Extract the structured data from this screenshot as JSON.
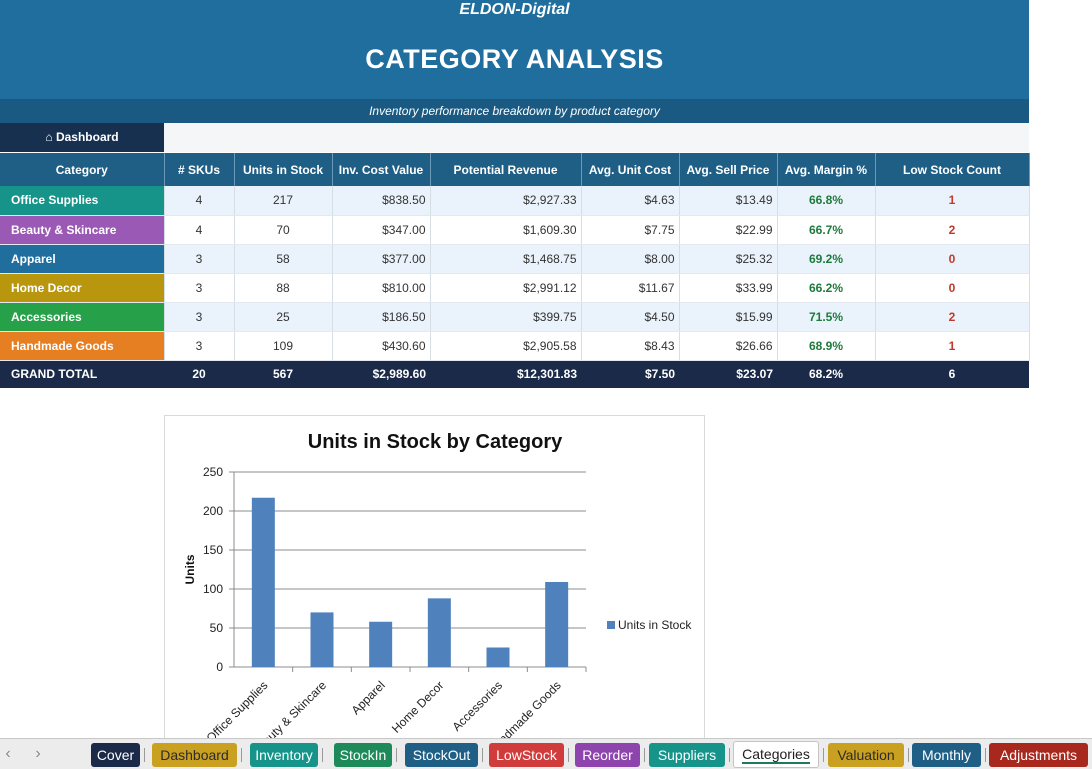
{
  "header": {
    "brand": "ELDON-Digital",
    "title": "CATEGORY ANALYSIS",
    "subtitle": "Inventory performance breakdown by product category",
    "dashboard_link": "⌂ Dashboard"
  },
  "table": {
    "columns": [
      "Category",
      "# SKUs",
      "Units in Stock",
      "Inv. Cost Value",
      "Potential Revenue",
      "Avg. Unit Cost",
      "Avg. Sell Price",
      "Avg. Margin %",
      "Low Stock Count"
    ],
    "rows": [
      {
        "category": "Office Supplies",
        "color": "#17948a",
        "skus": "4",
        "units": "217",
        "cost_value": "$838.50",
        "revenue": "$2,927.33",
        "avg_cost": "$4.63",
        "avg_price": "$13.49",
        "margin": "66.8%",
        "low": "1"
      },
      {
        "category": "Beauty & Skincare",
        "color": "#9b59b6",
        "skus": "4",
        "units": "70",
        "cost_value": "$347.00",
        "revenue": "$1,609.30",
        "avg_cost": "$7.75",
        "avg_price": "$22.99",
        "margin": "66.7%",
        "low": "2"
      },
      {
        "category": "Apparel",
        "color": "#1f6e9e",
        "skus": "3",
        "units": "58",
        "cost_value": "$377.00",
        "revenue": "$1,468.75",
        "avg_cost": "$8.00",
        "avg_price": "$25.32",
        "margin": "69.2%",
        "low": "0"
      },
      {
        "category": "Home Decor",
        "color": "#b8960e",
        "skus": "3",
        "units": "88",
        "cost_value": "$810.00",
        "revenue": "$2,991.12",
        "avg_cost": "$11.67",
        "avg_price": "$33.99",
        "margin": "66.2%",
        "low": "0"
      },
      {
        "category": "Accessories",
        "color": "#27a04a",
        "skus": "3",
        "units": "25",
        "cost_value": "$186.50",
        "revenue": "$399.75",
        "avg_cost": "$4.50",
        "avg_price": "$15.99",
        "margin": "71.5%",
        "low": "2"
      },
      {
        "category": "Handmade Goods",
        "color": "#e67e22",
        "skus": "3",
        "units": "109",
        "cost_value": "$430.60",
        "revenue": "$2,905.58",
        "avg_cost": "$8.43",
        "avg_price": "$26.66",
        "margin": "68.9%",
        "low": "1"
      }
    ],
    "total": {
      "label": "GRAND TOTAL",
      "skus": "20",
      "units": "567",
      "cost_value": "$2,989.60",
      "revenue": "$12,301.83",
      "avg_cost": "$7.50",
      "avg_price": "$23.07",
      "margin": "68.2%",
      "low": "6"
    }
  },
  "chart_data": {
    "type": "bar",
    "title": "Units in Stock by Category",
    "xlabel": "",
    "ylabel": "Units",
    "categories": [
      "Office Supplies",
      "Beauty & Skincare",
      "Apparel",
      "Home Decor",
      "Accessories",
      "Handmade Goods"
    ],
    "series": [
      {
        "name": "Units in Stock",
        "values": [
          217,
          70,
          58,
          88,
          25,
          109
        ],
        "color": "#4f81bd"
      }
    ],
    "ylim": [
      0,
      250
    ],
    "yticks": [
      0,
      50,
      100,
      150,
      200,
      250
    ],
    "grid": true,
    "legend": "right"
  },
  "sheet_tabs": [
    {
      "label": "Cover",
      "color": "#1b2a48"
    },
    {
      "label": "Dashboard",
      "color": "#c9a020"
    },
    {
      "label": "Inventory",
      "color": "#17948a"
    },
    {
      "label": "StockIn",
      "color": "#1e8a5a"
    },
    {
      "label": "StockOut",
      "color": "#1f5f86"
    },
    {
      "label": "LowStock",
      "color": "#d03b3b"
    },
    {
      "label": "Reorder",
      "color": "#8e44ad"
    },
    {
      "label": "Suppliers",
      "color": "#17948a"
    },
    {
      "label": "Categories",
      "color": "#ffffff",
      "active": true
    },
    {
      "label": "Valuation",
      "color": "#c9a020"
    },
    {
      "label": "Monthly",
      "color": "#1f5f86"
    },
    {
      "label": "Adjustments",
      "color": "#a8281e"
    }
  ]
}
